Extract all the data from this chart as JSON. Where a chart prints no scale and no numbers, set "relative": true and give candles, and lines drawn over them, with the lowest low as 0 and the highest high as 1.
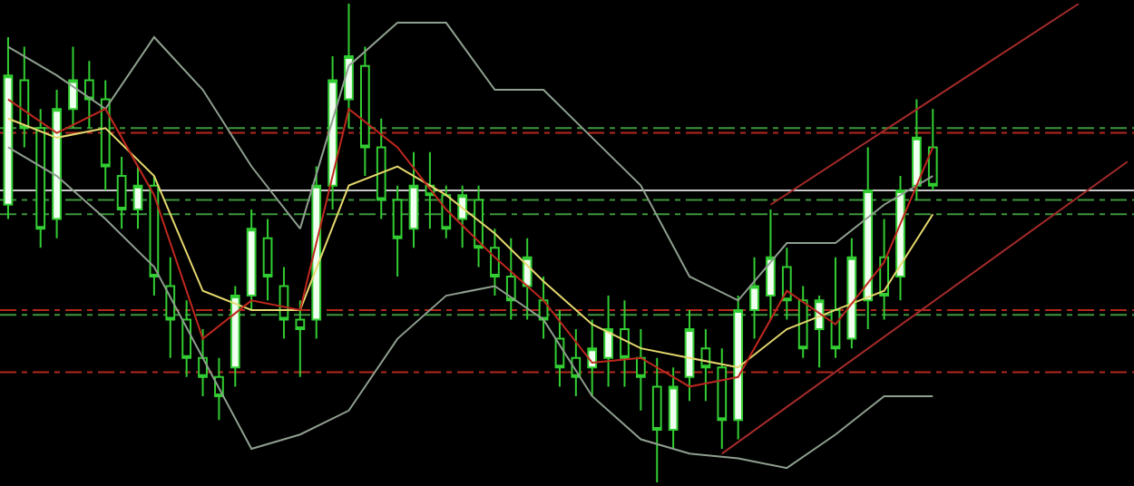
{
  "chart_data": {
    "type": "candlestick",
    "relative": true,
    "grid": false,
    "tick_labels": false,
    "color": "#32cd32",
    "categories": [
      null,
      null,
      null,
      null,
      null,
      null,
      null,
      null,
      null,
      null,
      null,
      null,
      null,
      null,
      null,
      null,
      null,
      null,
      null,
      null,
      null,
      null,
      null,
      null,
      null,
      null,
      null,
      null,
      null,
      null,
      null,
      null,
      null,
      null,
      null,
      null,
      null,
      null,
      null,
      null,
      null,
      null,
      null,
      null,
      null,
      null,
      null,
      null,
      null,
      null,
      null,
      null,
      null,
      null,
      null,
      null,
      null,
      null,
      null,
      null,
      null,
      null,
      null,
      null,
      null,
      null,
      null,
      null,
      null,
      null
    ],
    "ohlc": [
      [
        0.58,
        0.93,
        0.55,
        0.85
      ],
      [
        0.84,
        0.91,
        0.7,
        0.74
      ],
      [
        0.74,
        0.78,
        0.49,
        0.53
      ],
      [
        0.55,
        0.82,
        0.51,
        0.78
      ],
      [
        0.78,
        0.91,
        0.74,
        0.84
      ],
      [
        0.84,
        0.88,
        0.74,
        0.8
      ],
      [
        0.8,
        0.84,
        0.61,
        0.66
      ],
      [
        0.64,
        0.68,
        0.53,
        0.57
      ],
      [
        0.57,
        0.66,
        0.53,
        0.62
      ],
      [
        0.62,
        0.64,
        0.39,
        0.43
      ],
      [
        0.41,
        0.47,
        0.26,
        0.34
      ],
      [
        0.34,
        0.38,
        0.22,
        0.26
      ],
      [
        0.26,
        0.32,
        0.18,
        0.22
      ],
      [
        0.22,
        0.26,
        0.13,
        0.18
      ],
      [
        0.24,
        0.41,
        0.2,
        0.39
      ],
      [
        0.39,
        0.57,
        0.36,
        0.53
      ],
      [
        0.51,
        0.55,
        0.38,
        0.43
      ],
      [
        0.41,
        0.45,
        0.3,
        0.34
      ],
      [
        0.34,
        0.38,
        0.22,
        0.32
      ],
      [
        0.34,
        0.66,
        0.3,
        0.62
      ],
      [
        0.62,
        0.89,
        0.57,
        0.84
      ],
      [
        0.8,
        1.0,
        0.74,
        0.89
      ],
      [
        0.87,
        0.91,
        0.64,
        0.7
      ],
      [
        0.7,
        0.76,
        0.55,
        0.59
      ],
      [
        0.59,
        0.62,
        0.43,
        0.51
      ],
      [
        0.53,
        0.69,
        0.49,
        0.62
      ],
      [
        0.62,
        0.69,
        0.53,
        0.6
      ],
      [
        0.6,
        0.62,
        0.51,
        0.53
      ],
      [
        0.55,
        0.62,
        0.49,
        0.6
      ],
      [
        0.59,
        0.62,
        0.45,
        0.49
      ],
      [
        0.49,
        0.53,
        0.39,
        0.43
      ],
      [
        0.43,
        0.51,
        0.34,
        0.38
      ],
      [
        0.41,
        0.51,
        0.34,
        0.47
      ],
      [
        0.38,
        0.43,
        0.3,
        0.34
      ],
      [
        0.3,
        0.36,
        0.2,
        0.24
      ],
      [
        0.26,
        0.32,
        0.18,
        0.22
      ],
      [
        0.24,
        0.34,
        0.18,
        0.28
      ],
      [
        0.26,
        0.39,
        0.2,
        0.32
      ],
      [
        0.32,
        0.38,
        0.2,
        0.26
      ],
      [
        0.26,
        0.32,
        0.15,
        0.22
      ],
      [
        0.2,
        0.26,
        0.0,
        0.11
      ],
      [
        0.11,
        0.24,
        0.07,
        0.2
      ],
      [
        0.22,
        0.36,
        0.17,
        0.32
      ],
      [
        0.28,
        0.32,
        0.17,
        0.24
      ],
      [
        0.24,
        0.28,
        0.07,
        0.13
      ],
      [
        0.13,
        0.39,
        0.09,
        0.36
      ],
      [
        0.36,
        0.47,
        0.3,
        0.41
      ],
      [
        0.39,
        0.57,
        0.34,
        0.47
      ],
      [
        0.45,
        0.49,
        0.34,
        0.38
      ],
      [
        0.38,
        0.41,
        0.26,
        0.28
      ],
      [
        0.32,
        0.39,
        0.24,
        0.38
      ],
      [
        0.36,
        0.47,
        0.26,
        0.28
      ],
      [
        0.3,
        0.51,
        0.28,
        0.47
      ],
      [
        0.38,
        0.7,
        0.32,
        0.61
      ],
      [
        0.47,
        0.55,
        0.34,
        0.39
      ],
      [
        0.43,
        0.64,
        0.38,
        0.61
      ],
      [
        0.62,
        0.8,
        0.59,
        0.72
      ],
      [
        0.7,
        0.78,
        0.61,
        0.62
      ],
      null,
      null,
      null,
      null,
      null,
      null,
      null,
      null,
      null,
      null,
      null,
      null
    ],
    "series": [
      {
        "type": "line",
        "color": "#8f9f8f",
        "values": [
          0.91,
          null,
          null,
          0.85,
          null,
          null,
          0.78,
          null,
          null,
          0.93,
          null,
          null,
          0.82,
          null,
          null,
          0.66,
          null,
          null,
          0.53,
          null,
          null,
          0.87,
          null,
          null,
          0.96,
          null,
          null,
          0.96,
          null,
          null,
          0.82,
          null,
          null,
          0.82,
          null,
          null,
          0.72,
          null,
          null,
          0.62,
          null,
          null,
          0.43,
          null,
          null,
          0.38,
          null,
          null,
          0.5,
          null,
          null,
          0.5,
          null,
          null,
          0.58,
          null,
          null,
          0.64,
          null,
          null,
          null,
          null,
          null,
          null,
          null,
          null,
          null,
          null,
          null,
          null
        ]
      },
      {
        "type": "line",
        "color": "#8f9f8f",
        "values": [
          0.7,
          null,
          null,
          0.64,
          null,
          null,
          0.55,
          null,
          null,
          0.45,
          null,
          null,
          0.26,
          null,
          null,
          0.07,
          null,
          null,
          0.1,
          null,
          null,
          0.15,
          null,
          null,
          0.3,
          null,
          null,
          0.39,
          null,
          null,
          0.41,
          null,
          null,
          0.34,
          null,
          null,
          0.18,
          null,
          null,
          0.09,
          null,
          null,
          0.06,
          null,
          null,
          0.05,
          null,
          null,
          0.03,
          null,
          null,
          0.1,
          null,
          null,
          0.18,
          null,
          null,
          0.18,
          null,
          null,
          null,
          null,
          null,
          null,
          null,
          null,
          null,
          null,
          null,
          null
        ]
      },
      {
        "type": "line",
        "color": "#e6d86e",
        "values": [
          0.76,
          null,
          null,
          0.72,
          null,
          null,
          0.74,
          null,
          null,
          0.64,
          null,
          null,
          0.4,
          null,
          null,
          0.36,
          null,
          null,
          0.36,
          null,
          null,
          0.62,
          null,
          null,
          0.66,
          null,
          null,
          0.6,
          null,
          null,
          0.52,
          null,
          null,
          0.42,
          null,
          null,
          0.33,
          null,
          null,
          0.28,
          null,
          null,
          0.26,
          null,
          null,
          0.24,
          null,
          null,
          0.32,
          null,
          null,
          0.36,
          null,
          null,
          0.4,
          null,
          null,
          0.56,
          null,
          null,
          null,
          null,
          null,
          null,
          null,
          null,
          null,
          null,
          null,
          null
        ]
      },
      {
        "type": "line",
        "color": "#c0281e",
        "values": [
          0.8,
          null,
          null,
          0.73,
          null,
          null,
          0.78,
          null,
          null,
          0.6,
          null,
          null,
          0.3,
          null,
          null,
          0.38,
          null,
          null,
          0.36,
          null,
          null,
          0.78,
          null,
          null,
          0.7,
          null,
          null,
          0.57,
          null,
          null,
          0.47,
          null,
          null,
          0.38,
          null,
          null,
          0.25,
          null,
          null,
          0.26,
          null,
          null,
          0.2,
          null,
          null,
          0.22,
          null,
          null,
          0.4,
          null,
          null,
          0.33,
          null,
          null,
          0.46,
          null,
          null,
          0.7,
          null,
          null,
          null,
          null,
          null,
          null,
          null,
          null,
          null,
          null,
          null,
          null
        ]
      },
      {
        "type": "line",
        "color": "#a52a2a",
        "values": [
          null,
          null,
          null,
          null,
          null,
          null,
          null,
          null,
          null,
          null,
          null,
          null,
          null,
          null,
          null,
          null,
          null,
          null,
          null,
          null,
          null,
          null,
          null,
          null,
          null,
          null,
          null,
          null,
          null,
          null,
          null,
          null,
          null,
          null,
          null,
          null,
          null,
          null,
          null,
          null,
          null,
          null,
          null,
          null,
          null,
          null,
          null,
          0.58,
          null,
          null,
          null,
          null,
          null,
          null,
          null,
          null,
          null,
          null,
          null,
          null,
          null,
          null,
          null,
          null,
          null,
          null,
          1.0,
          null,
          null,
          null
        ]
      },
      {
        "type": "line",
        "color": "#a52a2a",
        "values": [
          null,
          null,
          null,
          null,
          null,
          null,
          null,
          null,
          null,
          null,
          null,
          null,
          null,
          null,
          null,
          null,
          null,
          null,
          null,
          null,
          null,
          null,
          null,
          null,
          null,
          null,
          null,
          null,
          null,
          null,
          null,
          null,
          null,
          null,
          null,
          null,
          null,
          null,
          null,
          null,
          null,
          null,
          null,
          null,
          0.06,
          null,
          null,
          null,
          null,
          null,
          null,
          null,
          null,
          null,
          null,
          null,
          null,
          null,
          null,
          null,
          null,
          null,
          null,
          null,
          null,
          null,
          null,
          null,
          null,
          0.67
        ]
      }
    ],
    "ref_lines": [
      {
        "axis": "y",
        "value": 0.74,
        "color": "#3c963c",
        "line_style": "dashdot"
      },
      {
        "axis": "y",
        "value": 0.73,
        "color": "#b4281e",
        "line_style": "dashdot"
      },
      {
        "axis": "y",
        "value": 0.61,
        "color": "#c8c8c8",
        "line_style": "solid"
      },
      {
        "axis": "y",
        "value": 0.59,
        "color": "#3c963c",
        "line_style": "dashdot"
      },
      {
        "axis": "y",
        "value": 0.56,
        "color": "#3c963c",
        "line_style": "dashdot"
      },
      {
        "axis": "y",
        "value": 0.36,
        "color": "#b4281e",
        "line_style": "dashdot"
      },
      {
        "axis": "y",
        "value": 0.35,
        "color": "#3c963c",
        "line_style": "dashdot"
      },
      {
        "axis": "y",
        "value": 0.23,
        "color": "#b4281e",
        "line_style": "dashdot"
      }
    ]
  }
}
